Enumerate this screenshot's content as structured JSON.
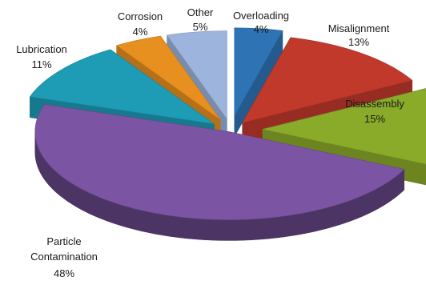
{
  "chart_data": {
    "type": "pie",
    "style": "3d-exploded",
    "title": "",
    "slices": [
      {
        "label": "Overloading",
        "value": 4,
        "percent_label": "4%",
        "color": "#2e74b5"
      },
      {
        "label": "Misalignment",
        "value": 13,
        "percent_label": "13%",
        "color": "#c0392b"
      },
      {
        "label": "Disassembly",
        "value": 15,
        "percent_label": "15%",
        "color": "#8aaa2a"
      },
      {
        "label": "Particle Contamination",
        "value": 48,
        "percent_label": "48%",
        "color": "#7b55a3"
      },
      {
        "label": "Lubrication",
        "value": 11,
        "percent_label": "11%",
        "color": "#1e9bb5"
      },
      {
        "label": "Corrosion",
        "value": 4,
        "percent_label": "4%",
        "color": "#e8901f"
      },
      {
        "label": "Other",
        "value": 5,
        "percent_label": "5%",
        "color": "#9db4dc"
      }
    ]
  }
}
